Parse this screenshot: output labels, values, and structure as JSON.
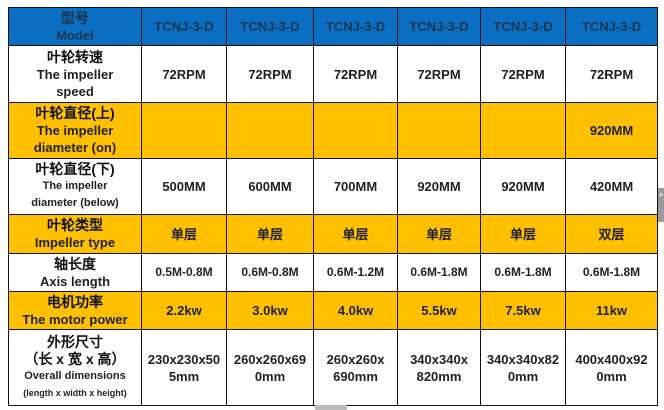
{
  "header": {
    "label_cn": "型号",
    "label_en": "Model",
    "models": [
      "TCNJ-3-D",
      "TCNJ-3-D",
      "TCNJ-3-D",
      "TCNJ-3-D",
      "TCNJ-3-D",
      "TCNJ-3-D"
    ]
  },
  "rows": [
    {
      "cn": "叶轮转速",
      "en": "The impeller speed",
      "values": [
        "72RPM",
        "72RPM",
        "72RPM",
        "72RPM",
        "72RPM",
        "72RPM"
      ]
    },
    {
      "cn": "叶轮直径(上)",
      "en": "The impeller diameter (on)",
      "values": [
        "",
        "",
        "",
        "",
        "",
        "920MM"
      ]
    },
    {
      "cn": "叶轮直径(下)",
      "en": "The impeller diameter (below)",
      "values": [
        "500MM",
        "600MM",
        "700MM",
        "920MM",
        "920MM",
        "420MM"
      ]
    },
    {
      "cn": "叶轮类型",
      "en": "Impeller type",
      "values": [
        "单层",
        "单层",
        "单层",
        "单层",
        "单层",
        "双层"
      ]
    },
    {
      "cn": "轴长度",
      "en": "Axis length",
      "values": [
        "0.5M-0.8M",
        "0.6M-0.8M",
        "0.6M-1.2M",
        "0.6M-1.8M",
        "0.6M-1.8M",
        "0.6M-1.8M"
      ]
    },
    {
      "cn": "电机功率",
      "en": "The motor power",
      "values": [
        "2.2kw",
        "3.0kw",
        "4.0kw",
        "5.5kw",
        "7.5kw",
        "11kw"
      ]
    },
    {
      "cn": "外形尺寸",
      "cn2": "（长 x 宽 x 高）",
      "en": "Overall dimensions",
      "en2": "(length x width x height)",
      "values": [
        "230x230x505mm",
        "260x260x690mm",
        "260x260x690mm",
        "340x340x820mm",
        "340x340x820mm",
        "400x400x920mm"
      ]
    }
  ],
  "colors": {
    "header": "#0a6fc2",
    "highlight": "#ffc000"
  }
}
